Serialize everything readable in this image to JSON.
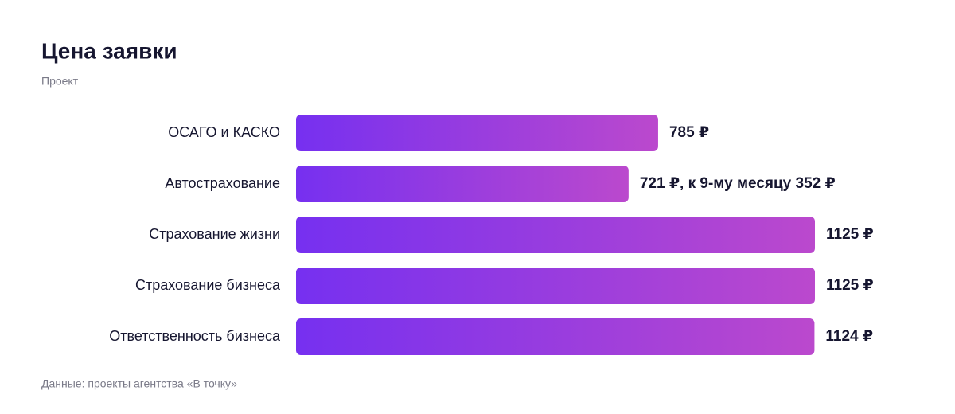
{
  "chart_data": {
    "type": "bar",
    "orientation": "horizontal",
    "title": "Цена заявки",
    "subtitle": "Проект",
    "categories": [
      "ОСАГО и КАСКО",
      "Автострахование",
      "Страхование жизни",
      "Страхование бизнеса",
      "Ответственность бизнеса"
    ],
    "values": [
      785,
      721,
      1125,
      1125,
      1124
    ],
    "value_labels": [
      "785 ₽",
      "721 ₽, к 9-му месяцу 352 ₽",
      "1125 ₽",
      "1125 ₽",
      "1124 ₽"
    ],
    "colors": [
      "#7630f0",
      "#bb49cd"
    ],
    "source": "Данные: проекты агентства «В точку»"
  }
}
